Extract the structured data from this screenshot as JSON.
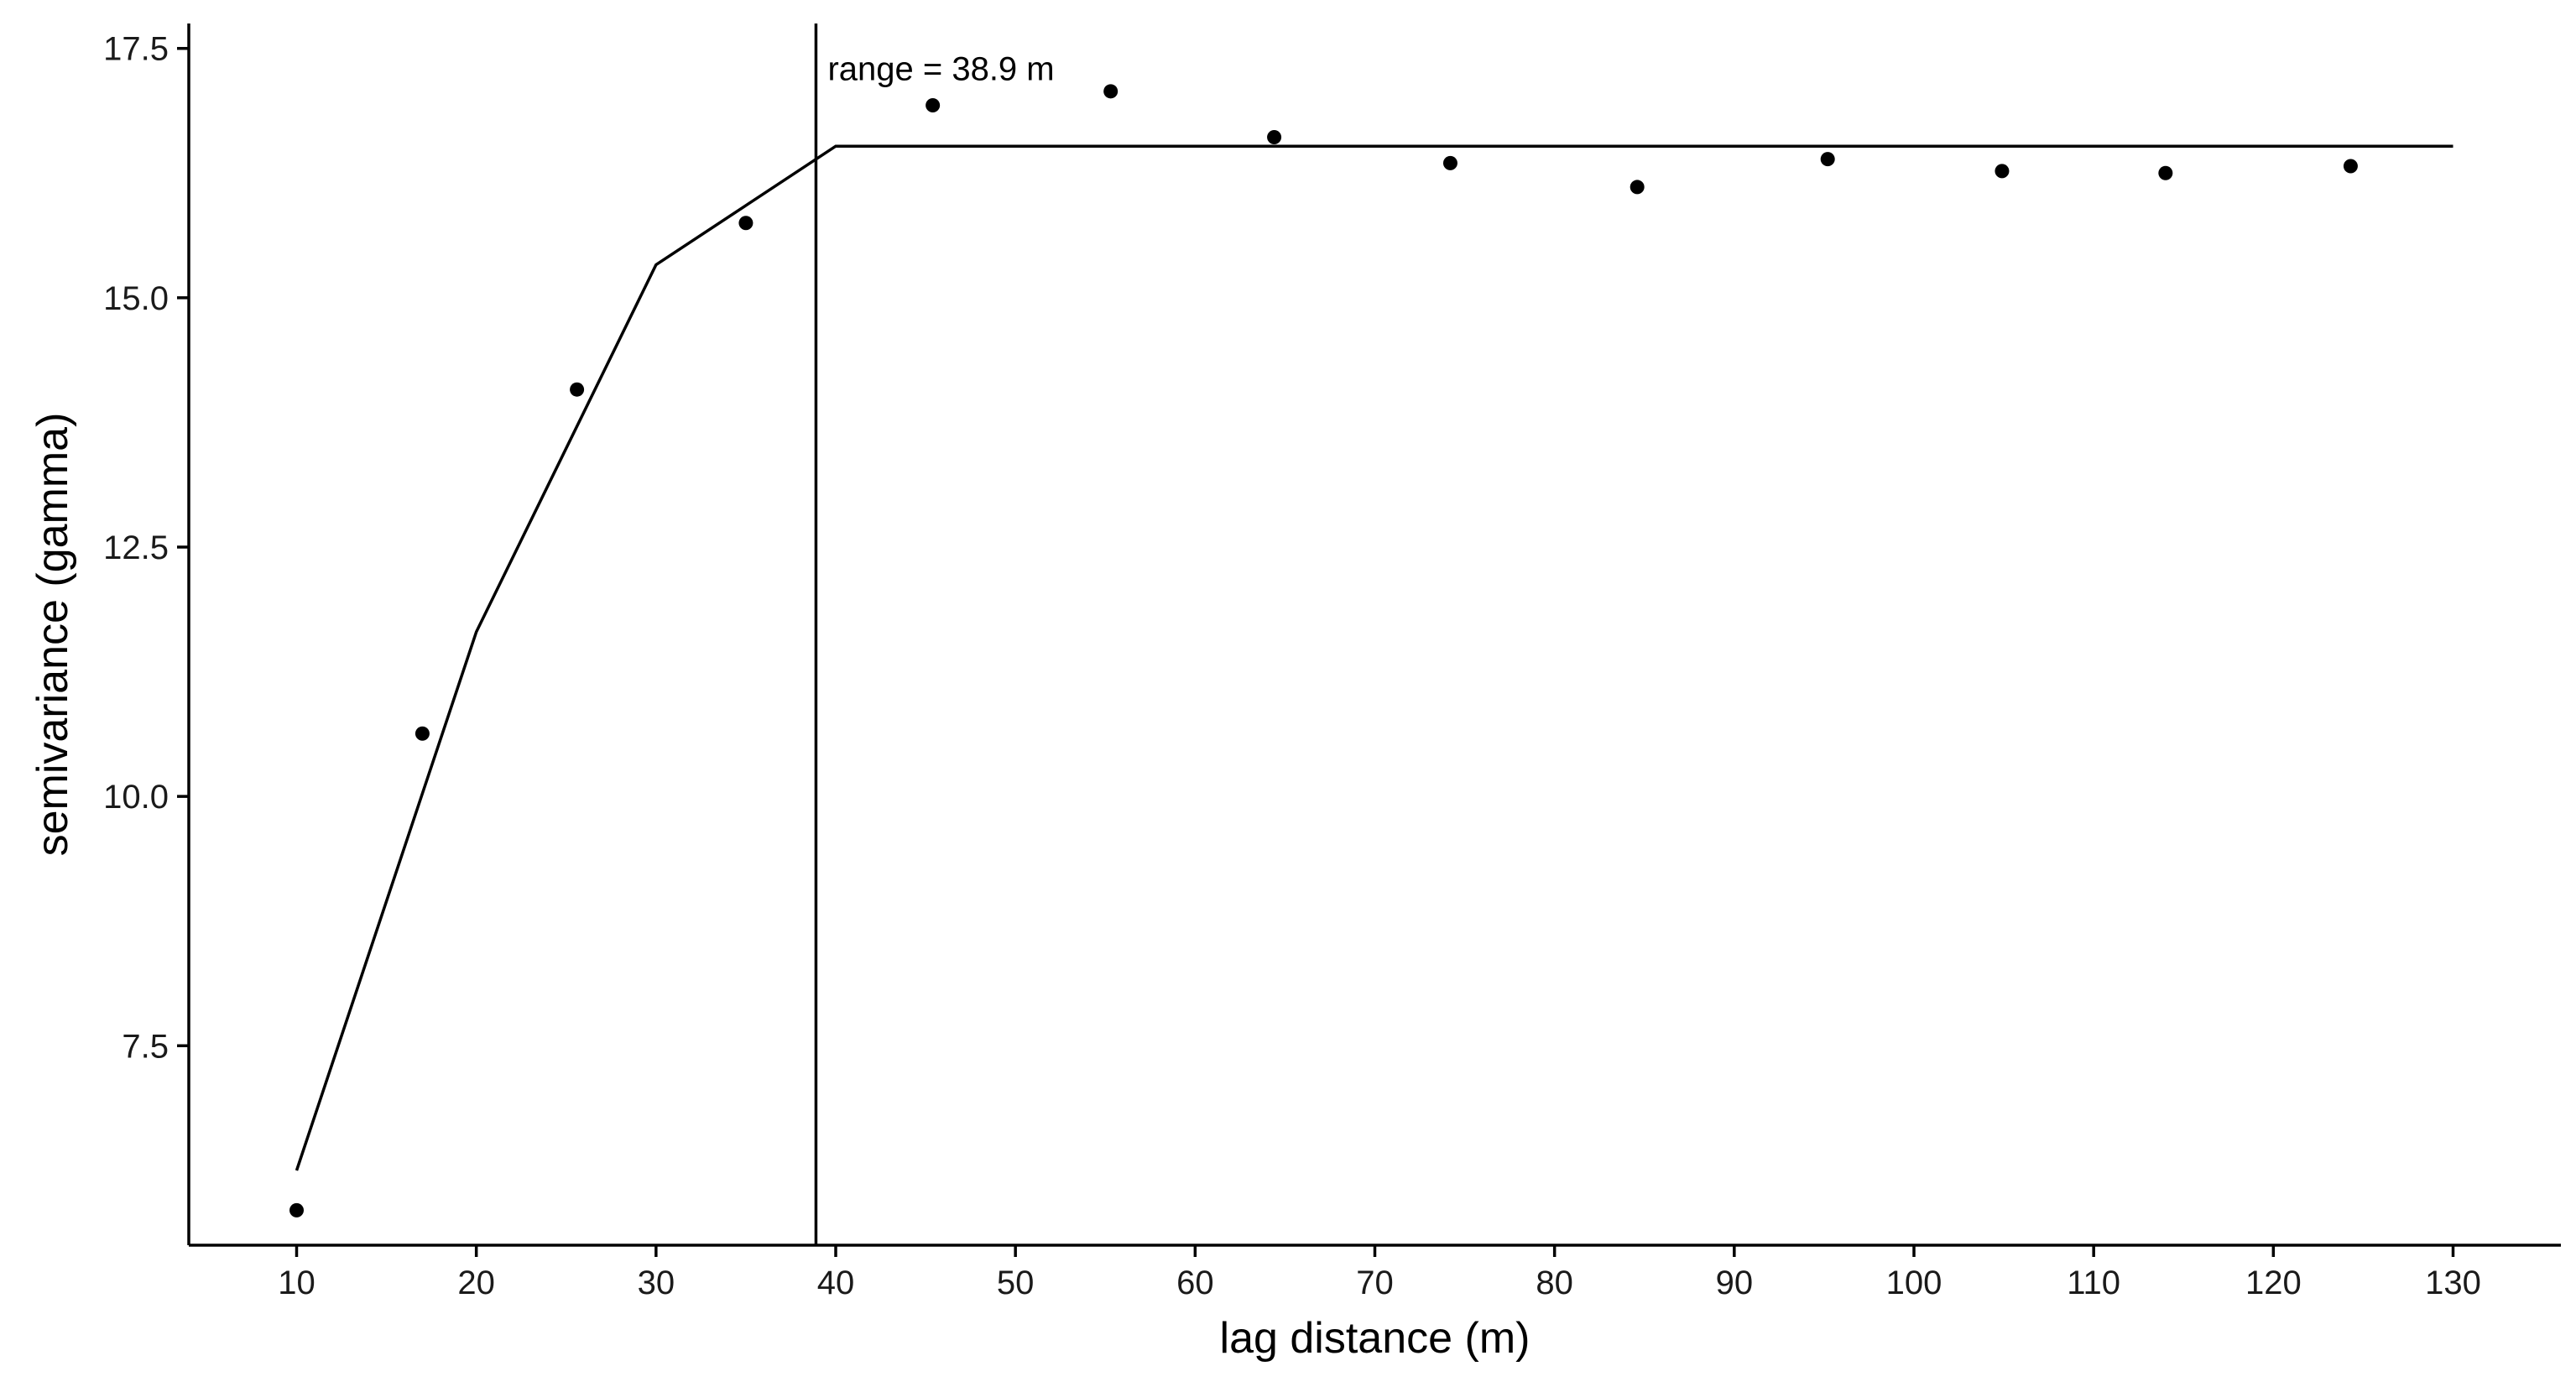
{
  "chart_data": {
    "type": "scatter",
    "xlabel": "lag distance (m)",
    "ylabel": "semivariance (gamma)",
    "xlim": [
      4,
      136
    ],
    "ylim": [
      5.5,
      17.75
    ],
    "x_ticks": [
      10,
      20,
      30,
      40,
      50,
      60,
      70,
      80,
      90,
      100,
      110,
      120,
      130
    ],
    "x_tick_labels": [
      "10",
      "20",
      "30",
      "40",
      "50",
      "60",
      "70",
      "80",
      "90",
      "100",
      "110",
      "120",
      "130"
    ],
    "y_ticks": [
      7.5,
      10.0,
      12.5,
      15.0,
      17.5
    ],
    "y_tick_labels": [
      "7.5",
      "10.0",
      "12.5",
      "15.0",
      "17.5"
    ],
    "grid": false,
    "points": {
      "x": [
        10.0,
        17.0,
        25.6,
        35.0,
        45.4,
        55.3,
        64.4,
        74.2,
        84.6,
        95.2,
        104.9,
        114.0,
        124.3
      ],
      "y": [
        5.85,
        10.63,
        14.08,
        15.75,
        16.93,
        17.07,
        16.61,
        16.35,
        16.11,
        16.39,
        16.27,
        16.25,
        16.32
      ]
    },
    "fitted_line": {
      "x": [
        10,
        20,
        30,
        40,
        130
      ],
      "y": [
        6.25,
        11.65,
        15.33,
        16.52,
        16.52
      ]
    },
    "vline": {
      "x": 38.9
    },
    "annotation": {
      "text": "range = 38.9 m",
      "x": 38.9,
      "y": 17.3
    },
    "colors": {
      "points": "#000000",
      "line": "#000000",
      "axis": "#000000",
      "text": "#1a1a1a"
    }
  }
}
